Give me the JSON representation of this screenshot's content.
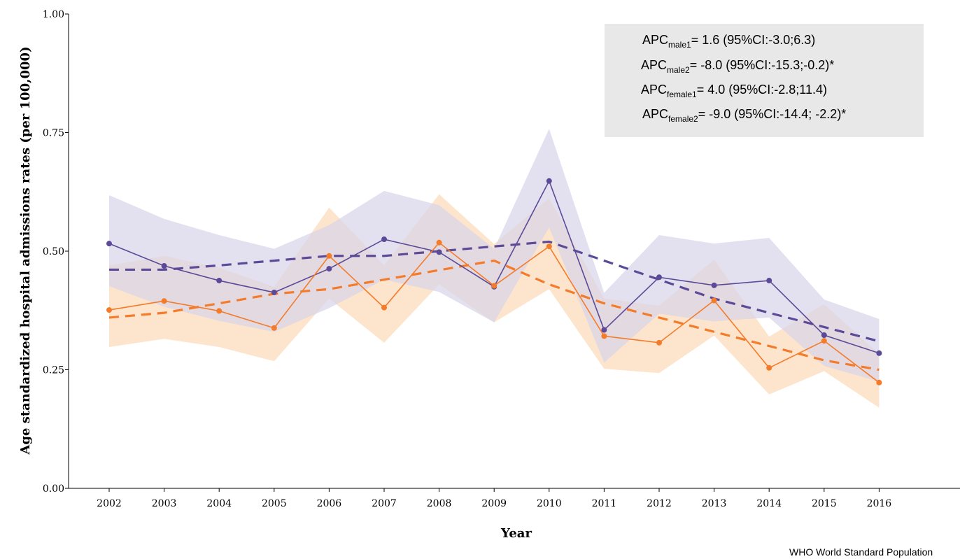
{
  "colors": {
    "male": "#5b4a98",
    "male_band": "#d7d4e8",
    "female": "#f47b2a",
    "female_band": "#fde0c4",
    "apc_box": "#e8e8e8"
  },
  "caption": "WHO World Standard Population",
  "apc_box": [
    {
      "prefix": "APC",
      "sub": "male1",
      "rest": "= 1.6 (95%CI:-3.0;6.3)"
    },
    {
      "prefix": "APC",
      "sub": "male2",
      "rest": "= -8.0 (95%CI:-15.3;-0.2)*"
    },
    {
      "prefix": "APC",
      "sub": "female1",
      "rest": "= 4.0 (95%CI:-2.8;11.4)"
    },
    {
      "prefix": "APC",
      "sub": "female2",
      "rest": "= -9.0 (95%CI:-14.4; -2.2)*"
    }
  ],
  "chart_data": {
    "type": "line",
    "title": "",
    "xlabel": "Year",
    "ylabel": "Age standardized hospital admissions rates (per 100,000)",
    "x": [
      2002,
      2003,
      2004,
      2005,
      2006,
      2007,
      2008,
      2009,
      2010,
      2011,
      2012,
      2013,
      2014,
      2015,
      2016
    ],
    "x_tick_labels": [
      "2002",
      "2003",
      "2004",
      "2005",
      "2006",
      "2007",
      "2008",
      "2009",
      "2010",
      "2011",
      "2012",
      "2013",
      "2014",
      "2015",
      "2016"
    ],
    "ylim": [
      0,
      1
    ],
    "y_ticks": [
      0,
      0.25,
      0.5,
      0.75,
      1
    ],
    "y_tick_labels": [
      "0.00",
      "0.25",
      "0.50",
      "0.75",
      "1.00"
    ],
    "grid": false,
    "series": [
      {
        "values": [
          0.516,
          0.469,
          0.438,
          0.413,
          0.463,
          0.525,
          0.498,
          0.425,
          0.648,
          0.334,
          0.445,
          0.428,
          0.438,
          0.323,
          0.285
        ],
        "ci_upper": [
          0.618,
          0.568,
          0.534,
          0.505,
          0.555,
          0.627,
          0.597,
          0.505,
          0.758,
          0.412,
          0.534,
          0.516,
          0.528,
          0.398,
          0.357
        ],
        "ci_lower": [
          0.426,
          0.383,
          0.353,
          0.33,
          0.38,
          0.44,
          0.414,
          0.35,
          0.55,
          0.265,
          0.368,
          0.352,
          0.36,
          0.258,
          0.225
        ],
        "trend": [
          0.461,
          0.461,
          0.47,
          0.48,
          0.49,
          0.49,
          0.5,
          0.51,
          0.52,
          0.48,
          0.44,
          0.4,
          0.37,
          0.34,
          0.31
        ],
        "style": "solid-with-dashed-trend"
      },
      {
        "values": [
          0.376,
          0.395,
          0.374,
          0.338,
          0.49,
          0.381,
          0.518,
          0.427,
          0.51,
          0.321,
          0.307,
          0.396,
          0.254,
          0.311,
          0.223
        ],
        "ci_upper": [
          0.47,
          0.49,
          0.465,
          0.425,
          0.592,
          0.47,
          0.62,
          0.515,
          0.612,
          0.4,
          0.385,
          0.482,
          0.32,
          0.388,
          0.283
        ],
        "ci_lower": [
          0.298,
          0.315,
          0.298,
          0.268,
          0.4,
          0.307,
          0.43,
          0.35,
          0.42,
          0.252,
          0.243,
          0.322,
          0.198,
          0.247,
          0.17
        ],
        "trend": [
          0.36,
          0.37,
          0.39,
          0.41,
          0.42,
          0.44,
          0.46,
          0.48,
          0.43,
          0.39,
          0.36,
          0.33,
          0.3,
          0.27,
          0.25
        ],
        "style": "solid-with-dashed-trend"
      }
    ]
  }
}
